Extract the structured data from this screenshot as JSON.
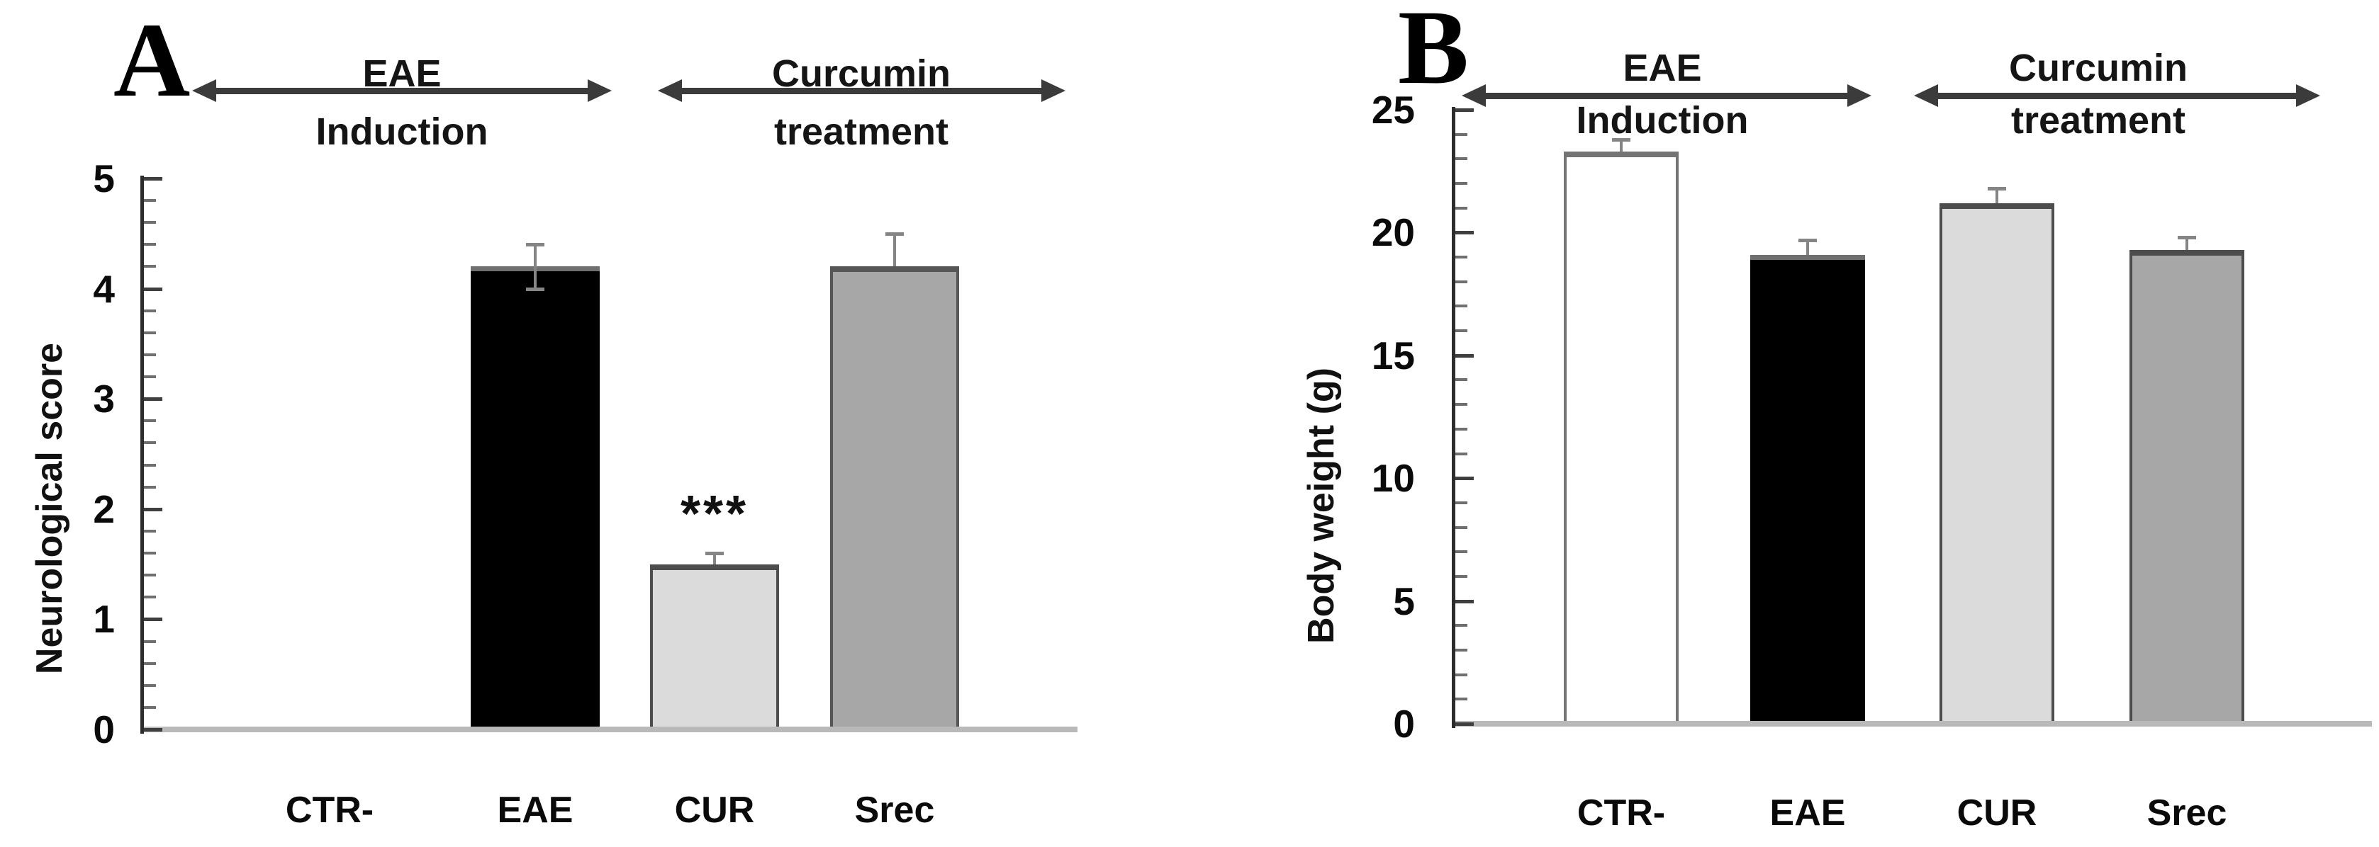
{
  "figure_caption_letters": [
    "A",
    "B"
  ],
  "significance_marker": "***",
  "colors": {
    "bar_black": "#000000",
    "bar_white": "#ffffff",
    "bar_light_gray": "#dbdbdb",
    "bar_medium_gray": "#a7a7a7",
    "bar_edge_dark": "#4d4d4d",
    "error_bar_gray": "#858585",
    "baseline_gray": "#b9b9b9",
    "axis_dark": "#2d2d2d",
    "arrow_dark": "#3b3b3b"
  },
  "chart_data": [
    {
      "type": "bar",
      "panel_label": "A",
      "title": "",
      "xlabel": "",
      "ylabel": "Neurological score",
      "ylim": [
        0,
        5
      ],
      "y_major_tick_step": 1,
      "y_minor_tick_step": 0.2,
      "y_tick_labels": [
        "0",
        "1",
        "2",
        "3",
        "4",
        "5"
      ],
      "grid": "off",
      "legend": "none",
      "categories": [
        "CTR-",
        "EAE",
        "CUR",
        "Srec"
      ],
      "values": [
        0,
        4.2,
        1.5,
        4.2
      ],
      "errors": [
        0,
        0.2,
        0.1,
        0.3
      ],
      "error_caps": [
        "none",
        "both",
        "upper",
        "upper"
      ],
      "annotations": [
        "",
        "",
        "***",
        ""
      ],
      "bar_fills": [
        "#ffffff",
        "#000000",
        "#dbdbdb",
        "#a7a7a7"
      ],
      "bar_edges": [
        "none",
        "#6f6f6f",
        "#4d4d4d",
        "#565656"
      ],
      "group_arrows": [
        {
          "line1": "EAE",
          "line2": "Induction"
        },
        {
          "line1": "Curcumin",
          "line2": "treatment"
        }
      ]
    },
    {
      "type": "bar",
      "panel_label": "B",
      "title": "",
      "xlabel": "",
      "ylabel": "Body weight (g)",
      "ylim": [
        0,
        25
      ],
      "y_major_tick_step": 5,
      "y_minor_tick_step": 1,
      "y_tick_labels": [
        "0",
        "5",
        "10",
        "15",
        "20",
        "25"
      ],
      "grid": "off",
      "legend": "none",
      "categories": [
        "CTR-",
        "EAE",
        "CUR",
        "Srec"
      ],
      "values": [
        23.3,
        19.1,
        21.2,
        19.3
      ],
      "errors": [
        0.5,
        0.6,
        0.6,
        0.5
      ],
      "error_caps": [
        "upper",
        "upper",
        "upper",
        "upper"
      ],
      "annotations": [
        "",
        "",
        "",
        ""
      ],
      "bar_fills": [
        "#ffffff",
        "#000000",
        "#dbdbdb",
        "#a7a7a7"
      ],
      "bar_edges": [
        "#747474",
        "#6f6f6f",
        "#4d4d4d",
        "#4d4d4d"
      ],
      "group_arrows": [
        {
          "line1": "EAE",
          "line2": "Induction"
        },
        {
          "line1": "Curcumin",
          "line2": "treatment"
        }
      ]
    }
  ]
}
